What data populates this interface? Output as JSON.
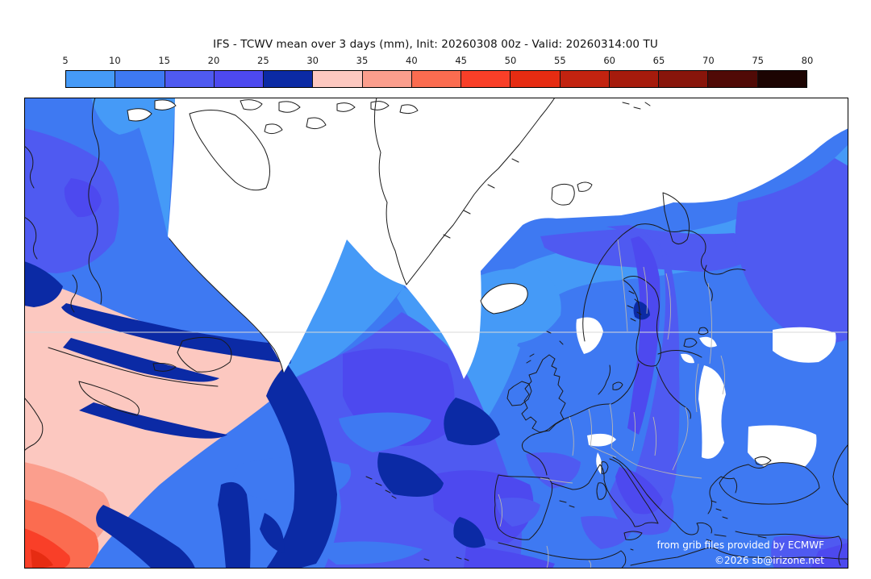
{
  "title": "IFS - TCWV mean over 3 days (mm), Init: 20260308 00z - Valid: 20260314:00 TU",
  "colorbar": {
    "unit": "mm",
    "tick_labels": [
      "5",
      "10",
      "15",
      "20",
      "25",
      "30",
      "35",
      "40",
      "45",
      "50",
      "55",
      "60",
      "65",
      "70",
      "75",
      "80"
    ],
    "segments": [
      {
        "range": "5-10",
        "color": "#459af7"
      },
      {
        "range": "10-15",
        "color": "#3e79f2"
      },
      {
        "range": "15-20",
        "color": "#4f5af1"
      },
      {
        "range": "20-25",
        "color": "#4d49ef"
      },
      {
        "range": "25-30",
        "color": "#0b2aa5"
      },
      {
        "range": "30-35",
        "color": "#fcc8c0"
      },
      {
        "range": "35-40",
        "color": "#fb9e8d"
      },
      {
        "range": "40-45",
        "color": "#fb6c50"
      },
      {
        "range": "45-50",
        "color": "#f93f28"
      },
      {
        "range": "50-55",
        "color": "#e62c12"
      },
      {
        "range": "55-60",
        "color": "#c22310"
      },
      {
        "range": "60-65",
        "color": "#a61b0c"
      },
      {
        "range": "65-70",
        "color": "#88150b"
      },
      {
        "range": "70-75",
        "color": "#500a06"
      },
      {
        "range": "75-80",
        "color": "#1c0402"
      }
    ]
  },
  "map": {
    "attribution_line1": "from grib files provided by ECMWF",
    "attribution_line2": "©2026 sb@irizone.net",
    "no_data_color": "#ffffff",
    "coastline_color": "#1a1a1a",
    "border_color": "#b5b5b5"
  }
}
